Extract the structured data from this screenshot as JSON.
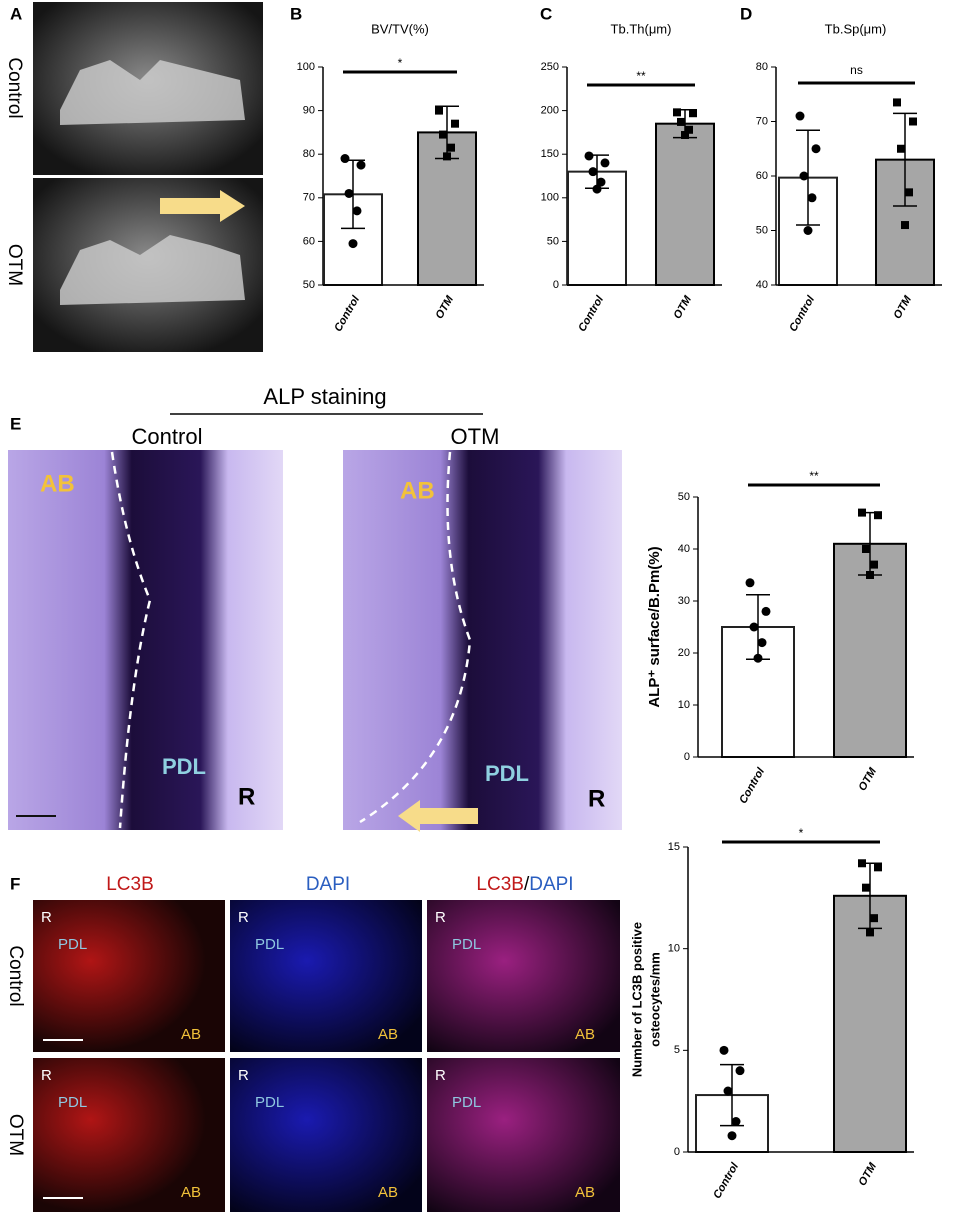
{
  "panels": {
    "letters": [
      "A",
      "B",
      "C",
      "D",
      "E",
      "F"
    ],
    "a_rows": [
      "Control",
      "OTM"
    ],
    "e_header": "ALP staining",
    "e_groups": [
      "Control",
      "OTM"
    ],
    "f_headers": [
      "LC3B",
      "DAPI"
    ],
    "f_separator": "/",
    "f_rows": [
      "Control",
      "OTM"
    ],
    "image_labels": {
      "ab": "AB",
      "pdl": "PDL",
      "r": "R"
    }
  },
  "chart_data": [
    {
      "type": "bar",
      "title": "BV/TV(%)",
      "categories": [
        "Control",
        "OTM"
      ],
      "values": [
        70.8,
        85
      ],
      "errors": [
        7.8,
        6
      ],
      "points": [
        [
          79,
          77.5,
          71,
          67,
          59.5
        ],
        [
          90,
          87,
          84.5,
          81.5,
          79.5
        ]
      ],
      "markers": [
        "circle",
        "square"
      ],
      "colors": [
        "#ffffff",
        "#a6a6a6"
      ],
      "significance": "*",
      "ylim": [
        50,
        100
      ],
      "yticks": [
        50,
        60,
        70,
        80,
        90,
        100
      ]
    },
    {
      "type": "bar",
      "title": "Tb.Th(μm)",
      "categories": [
        "Control",
        "OTM"
      ],
      "values": [
        130,
        185
      ],
      "errors": [
        19,
        16
      ],
      "points": [
        [
          148,
          140,
          130,
          118,
          110
        ],
        [
          198,
          197,
          187,
          178,
          172
        ]
      ],
      "markers": [
        "circle",
        "square"
      ],
      "colors": [
        "#ffffff",
        "#a6a6a6"
      ],
      "significance": "**",
      "ylim": [
        0,
        250
      ],
      "yticks": [
        0,
        50,
        100,
        150,
        200,
        250
      ]
    },
    {
      "type": "bar",
      "title": "Tb.Sp(μm)",
      "categories": [
        "Control",
        "OTM"
      ],
      "values": [
        59.7,
        63
      ],
      "errors": [
        8.7,
        8.5
      ],
      "points": [
        [
          71,
          65,
          60,
          56,
          50
        ],
        [
          73.5,
          70,
          65,
          57,
          51
        ]
      ],
      "markers": [
        "circle",
        "square"
      ],
      "colors": [
        "#ffffff",
        "#a6a6a6"
      ],
      "significance": "ns",
      "ylim": [
        40,
        80
      ],
      "yticks": [
        40,
        50,
        60,
        70,
        80
      ]
    },
    {
      "type": "bar",
      "ylabel": "ALP⁺ surface/B.Pm(%)",
      "categories": [
        "Control",
        "OTM"
      ],
      "values": [
        25,
        41
      ],
      "errors": [
        6.2,
        6
      ],
      "points": [
        [
          33.5,
          28,
          25,
          22,
          19
        ],
        [
          47,
          46.5,
          40,
          37,
          35
        ]
      ],
      "markers": [
        "circle",
        "square"
      ],
      "colors": [
        "#ffffff",
        "#a6a6a6"
      ],
      "significance": "**",
      "ylim": [
        0,
        50
      ],
      "yticks": [
        0,
        10,
        20,
        30,
        40,
        50
      ]
    },
    {
      "type": "bar",
      "ylabel": [
        "Number of LC3B positive",
        "osteocytes/mm"
      ],
      "categories": [
        "Control",
        "OTM"
      ],
      "values": [
        2.8,
        12.6
      ],
      "errors": [
        1.5,
        1.6
      ],
      "points": [
        [
          5,
          4,
          3,
          1.5,
          0.8
        ],
        [
          14.2,
          14,
          13,
          11.5,
          10.8
        ]
      ],
      "markers": [
        "circle",
        "square"
      ],
      "colors": [
        "#ffffff",
        "#a6a6a6"
      ],
      "significance": "*",
      "ylim": [
        0,
        15
      ],
      "yticks": [
        0,
        5,
        10,
        15
      ]
    }
  ]
}
